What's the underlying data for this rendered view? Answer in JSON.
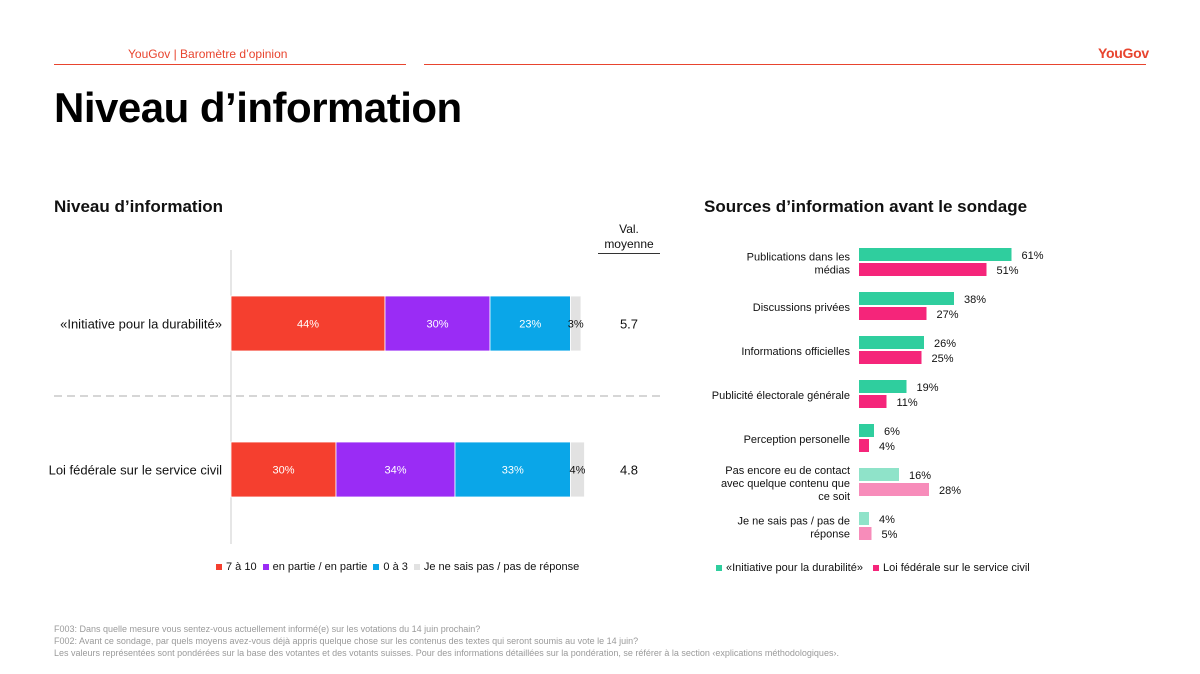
{
  "header": {
    "left_text": "YouGov | Baromètre d’opinion",
    "brand": "YouGov"
  },
  "title": "Niveau d’information",
  "colors": {
    "accent": "#e8442e",
    "level_high": "#f53f2f",
    "level_mid": "#9a2cf5",
    "level_low": "#0aa6e8",
    "level_dk": "#e2e2e2",
    "initiative": "#2fce9e",
    "loi": "#f5257a",
    "initiative_light": "#8fe3c9",
    "loi_light": "#f78cba"
  },
  "chart_data": [
    {
      "type": "bar",
      "orientation": "horizontal-stacked",
      "title": "Niveau d’information",
      "categories": [
        "«Initiative pour la durabilité»",
        "Loi fédérale sur le service civil"
      ],
      "series": [
        {
          "name": "7 à 10",
          "values": [
            44,
            30
          ],
          "labels": [
            "44%",
            "30%"
          ]
        },
        {
          "name": "en partie / en partie",
          "values": [
            30,
            34
          ],
          "labels": [
            "30%",
            "34%"
          ]
        },
        {
          "name": "0 à 3",
          "values": [
            23,
            33
          ],
          "labels": [
            "23%",
            "33%"
          ]
        },
        {
          "name": "Je ne sais pas / pas de réponse",
          "values": [
            3,
            4
          ],
          "labels": [
            "3%",
            "4%"
          ]
        }
      ],
      "avg_header": "Val. moyenne",
      "avg_values": [
        "5.7",
        "4.8"
      ],
      "legend_position": "bottom"
    },
    {
      "type": "bar",
      "orientation": "horizontal-grouped",
      "title": "Sources d’information avant le sondage",
      "categories": [
        [
          "Publications dans les",
          "médias"
        ],
        [
          "Discussions privées"
        ],
        [
          "Informations officielles"
        ],
        [
          "Publicité électorale générale"
        ],
        [
          "Perception personelle"
        ],
        [
          "Pas encore eu de contact",
          "avec quelque contenu que",
          "ce soit"
        ],
        [
          "Je ne sais pas / pas de",
          "réponse"
        ]
      ],
      "series": [
        {
          "name": "«Initiative pour la durabilité»",
          "values": [
            61,
            38,
            26,
            19,
            6,
            16,
            4
          ],
          "labels": [
            "61%",
            "38%",
            "26%",
            "19%",
            "6%",
            "16%",
            "4%"
          ]
        },
        {
          "name": "Loi fédérale sur le service civil",
          "values": [
            51,
            27,
            25,
            11,
            4,
            28,
            5
          ],
          "labels": [
            "51%",
            "27%",
            "25%",
            "11%",
            "4%",
            "28%",
            "5%"
          ]
        }
      ],
      "legend_position": "bottom"
    }
  ],
  "footer": [
    "F003: Dans quelle mesure vous sentez-vous actuellement informé(e) sur les votations du 14 juin prochain?",
    "F002: Avant ce sondage, par quels moyens avez-vous déjà appris quelque chose sur les contenus des textes qui seront soumis au vote le 14 juin?",
    "Les valeurs représentées sont pondérées sur la base des votantes et des votants suisses. Pour des informations détaillées sur la pondération, se référer à la section ‹explications méthodologiques›."
  ]
}
